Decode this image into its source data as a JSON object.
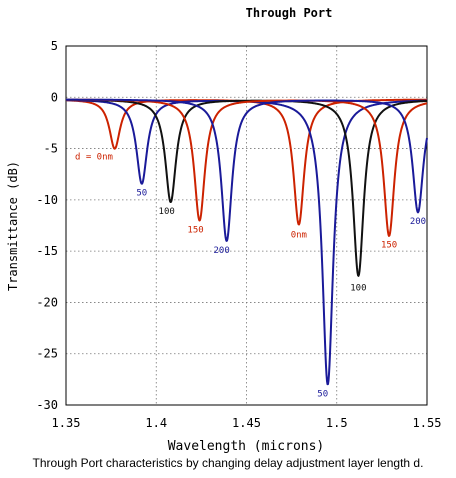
{
  "chart_data": {
    "type": "line",
    "title": "Through Port",
    "xlabel": "Wavelength (microns)",
    "ylabel": "Transmittance (dB)",
    "xlim": [
      1.35,
      1.55
    ],
    "ylim": [
      -30,
      5
    ],
    "xticks": [
      1.35,
      1.4,
      1.45,
      1.5,
      1.55
    ],
    "xtick_labels": [
      "1.35",
      "1.4",
      "1.45",
      "1.5",
      "1.55"
    ],
    "yticks": [
      5,
      0,
      -5,
      -10,
      -15,
      -20,
      -25,
      -30
    ],
    "ytick_labels": [
      "5",
      "0",
      "-5",
      "-10",
      "-15",
      "-20",
      "-25",
      "-30"
    ],
    "grid": true,
    "series": [
      {
        "color": "#cc2200",
        "dips": [
          {
            "x": 1.377,
            "y": -4.8,
            "label": "d = 0nm"
          },
          {
            "x": 1.479,
            "y": -12.2,
            "label": "0nm"
          }
        ]
      },
      {
        "color": "#1a1a99",
        "dips": [
          {
            "x": 1.392,
            "y": -8.2,
            "label": "50"
          },
          {
            "x": 1.495,
            "y": -27.8,
            "label": "50"
          }
        ]
      },
      {
        "color": "#111111",
        "dips": [
          {
            "x": 1.408,
            "y": -10.0,
            "label": "100"
          },
          {
            "x": 1.512,
            "y": -17.2,
            "label": "100"
          }
        ]
      },
      {
        "color": "#cc2200",
        "dips": [
          {
            "x": 1.424,
            "y": -11.8,
            "label": "150"
          },
          {
            "x": 1.529,
            "y": -13.3,
            "label": "150"
          }
        ]
      },
      {
        "color": "#1a1a99",
        "dips": [
          {
            "x": 1.439,
            "y": -13.8,
            "label": "200"
          },
          {
            "x": 1.545,
            "y": -11.0,
            "label": "200"
          }
        ]
      }
    ]
  },
  "caption": "Through Port characteristics by changing delay adjustment layer length d."
}
